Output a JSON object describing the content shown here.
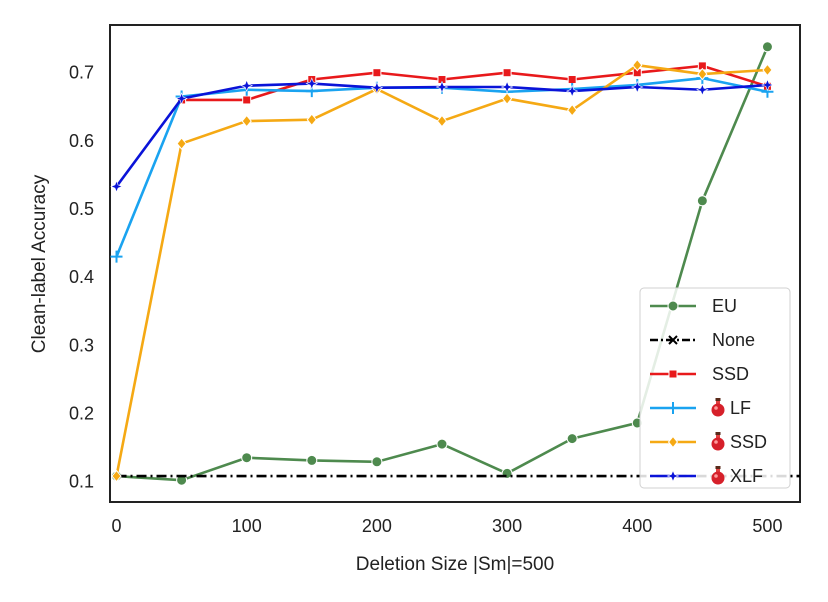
{
  "chart_data": {
    "type": "line",
    "title": "",
    "xlabel": "Deletion Size |Sm|=500",
    "ylabel": "Clean-label Accuracy",
    "xlim": [
      -5,
      525
    ],
    "ylim": [
      0.07,
      0.77
    ],
    "xticks": [
      0,
      100,
      200,
      300,
      400,
      500
    ],
    "yticks": [
      0.1,
      0.2,
      0.3,
      0.4,
      0.5,
      0.6,
      0.7
    ],
    "xtick_labels": [
      "0",
      "100",
      "200",
      "300",
      "400",
      "500"
    ],
    "ytick_labels": [
      "0.1",
      "0.2",
      "0.3",
      "0.4",
      "0.5",
      "0.6",
      "0.7"
    ],
    "grid": false,
    "legend_position": "lower-right",
    "series": [
      {
        "name": "EU",
        "color": "#4e8a4e",
        "marker": "circle",
        "line": "solid",
        "x": [
          0,
          50,
          100,
          150,
          200,
          250,
          300,
          350,
          400,
          450,
          500
        ],
        "y": [
          0.108,
          0.102,
          0.135,
          0.131,
          0.129,
          0.155,
          0.112,
          0.163,
          0.186,
          0.512,
          0.738
        ]
      },
      {
        "name": "None",
        "color": "#000000",
        "marker": "x",
        "line": "dashdot",
        "x": [
          0,
          525
        ],
        "y": [
          0.108,
          0.108
        ]
      },
      {
        "name": "SSD",
        "color": "#e8191b",
        "marker": "square",
        "line": "solid",
        "x": [
          50,
          100,
          150,
          200,
          250,
          300,
          350,
          400,
          450,
          500
        ],
        "y": [
          0.66,
          0.66,
          0.69,
          0.7,
          0.69,
          0.7,
          0.69,
          0.7,
          0.71,
          0.68
        ]
      },
      {
        "name": "LF",
        "color": "#1aa3f0",
        "marker": "plus",
        "line": "solid",
        "poison_icon": true,
        "x": [
          0,
          50,
          100,
          150,
          200,
          250,
          300,
          350,
          400,
          450,
          500
        ],
        "y": [
          0.43,
          0.665,
          0.675,
          0.673,
          0.678,
          0.678,
          0.672,
          0.676,
          0.682,
          0.692,
          0.672
        ]
      },
      {
        "name": "SSD",
        "color": "#f5a914",
        "marker": "diamond",
        "line": "solid",
        "poison_icon": true,
        "x": [
          0,
          50,
          100,
          150,
          200,
          250,
          300,
          350,
          400,
          450,
          500
        ],
        "y": [
          0.108,
          0.596,
          0.629,
          0.631,
          0.676,
          0.629,
          0.662,
          0.645,
          0.711,
          0.698,
          0.704
        ]
      },
      {
        "name": "XLF",
        "color": "#0a13d8",
        "marker": "star",
        "line": "solid",
        "poison_icon": true,
        "x": [
          0,
          50,
          100,
          150,
          200,
          250,
          300,
          350,
          400,
          450,
          500
        ],
        "y": [
          0.533,
          0.662,
          0.681,
          0.684,
          0.678,
          0.679,
          0.679,
          0.673,
          0.679,
          0.675,
          0.682
        ]
      }
    ]
  }
}
